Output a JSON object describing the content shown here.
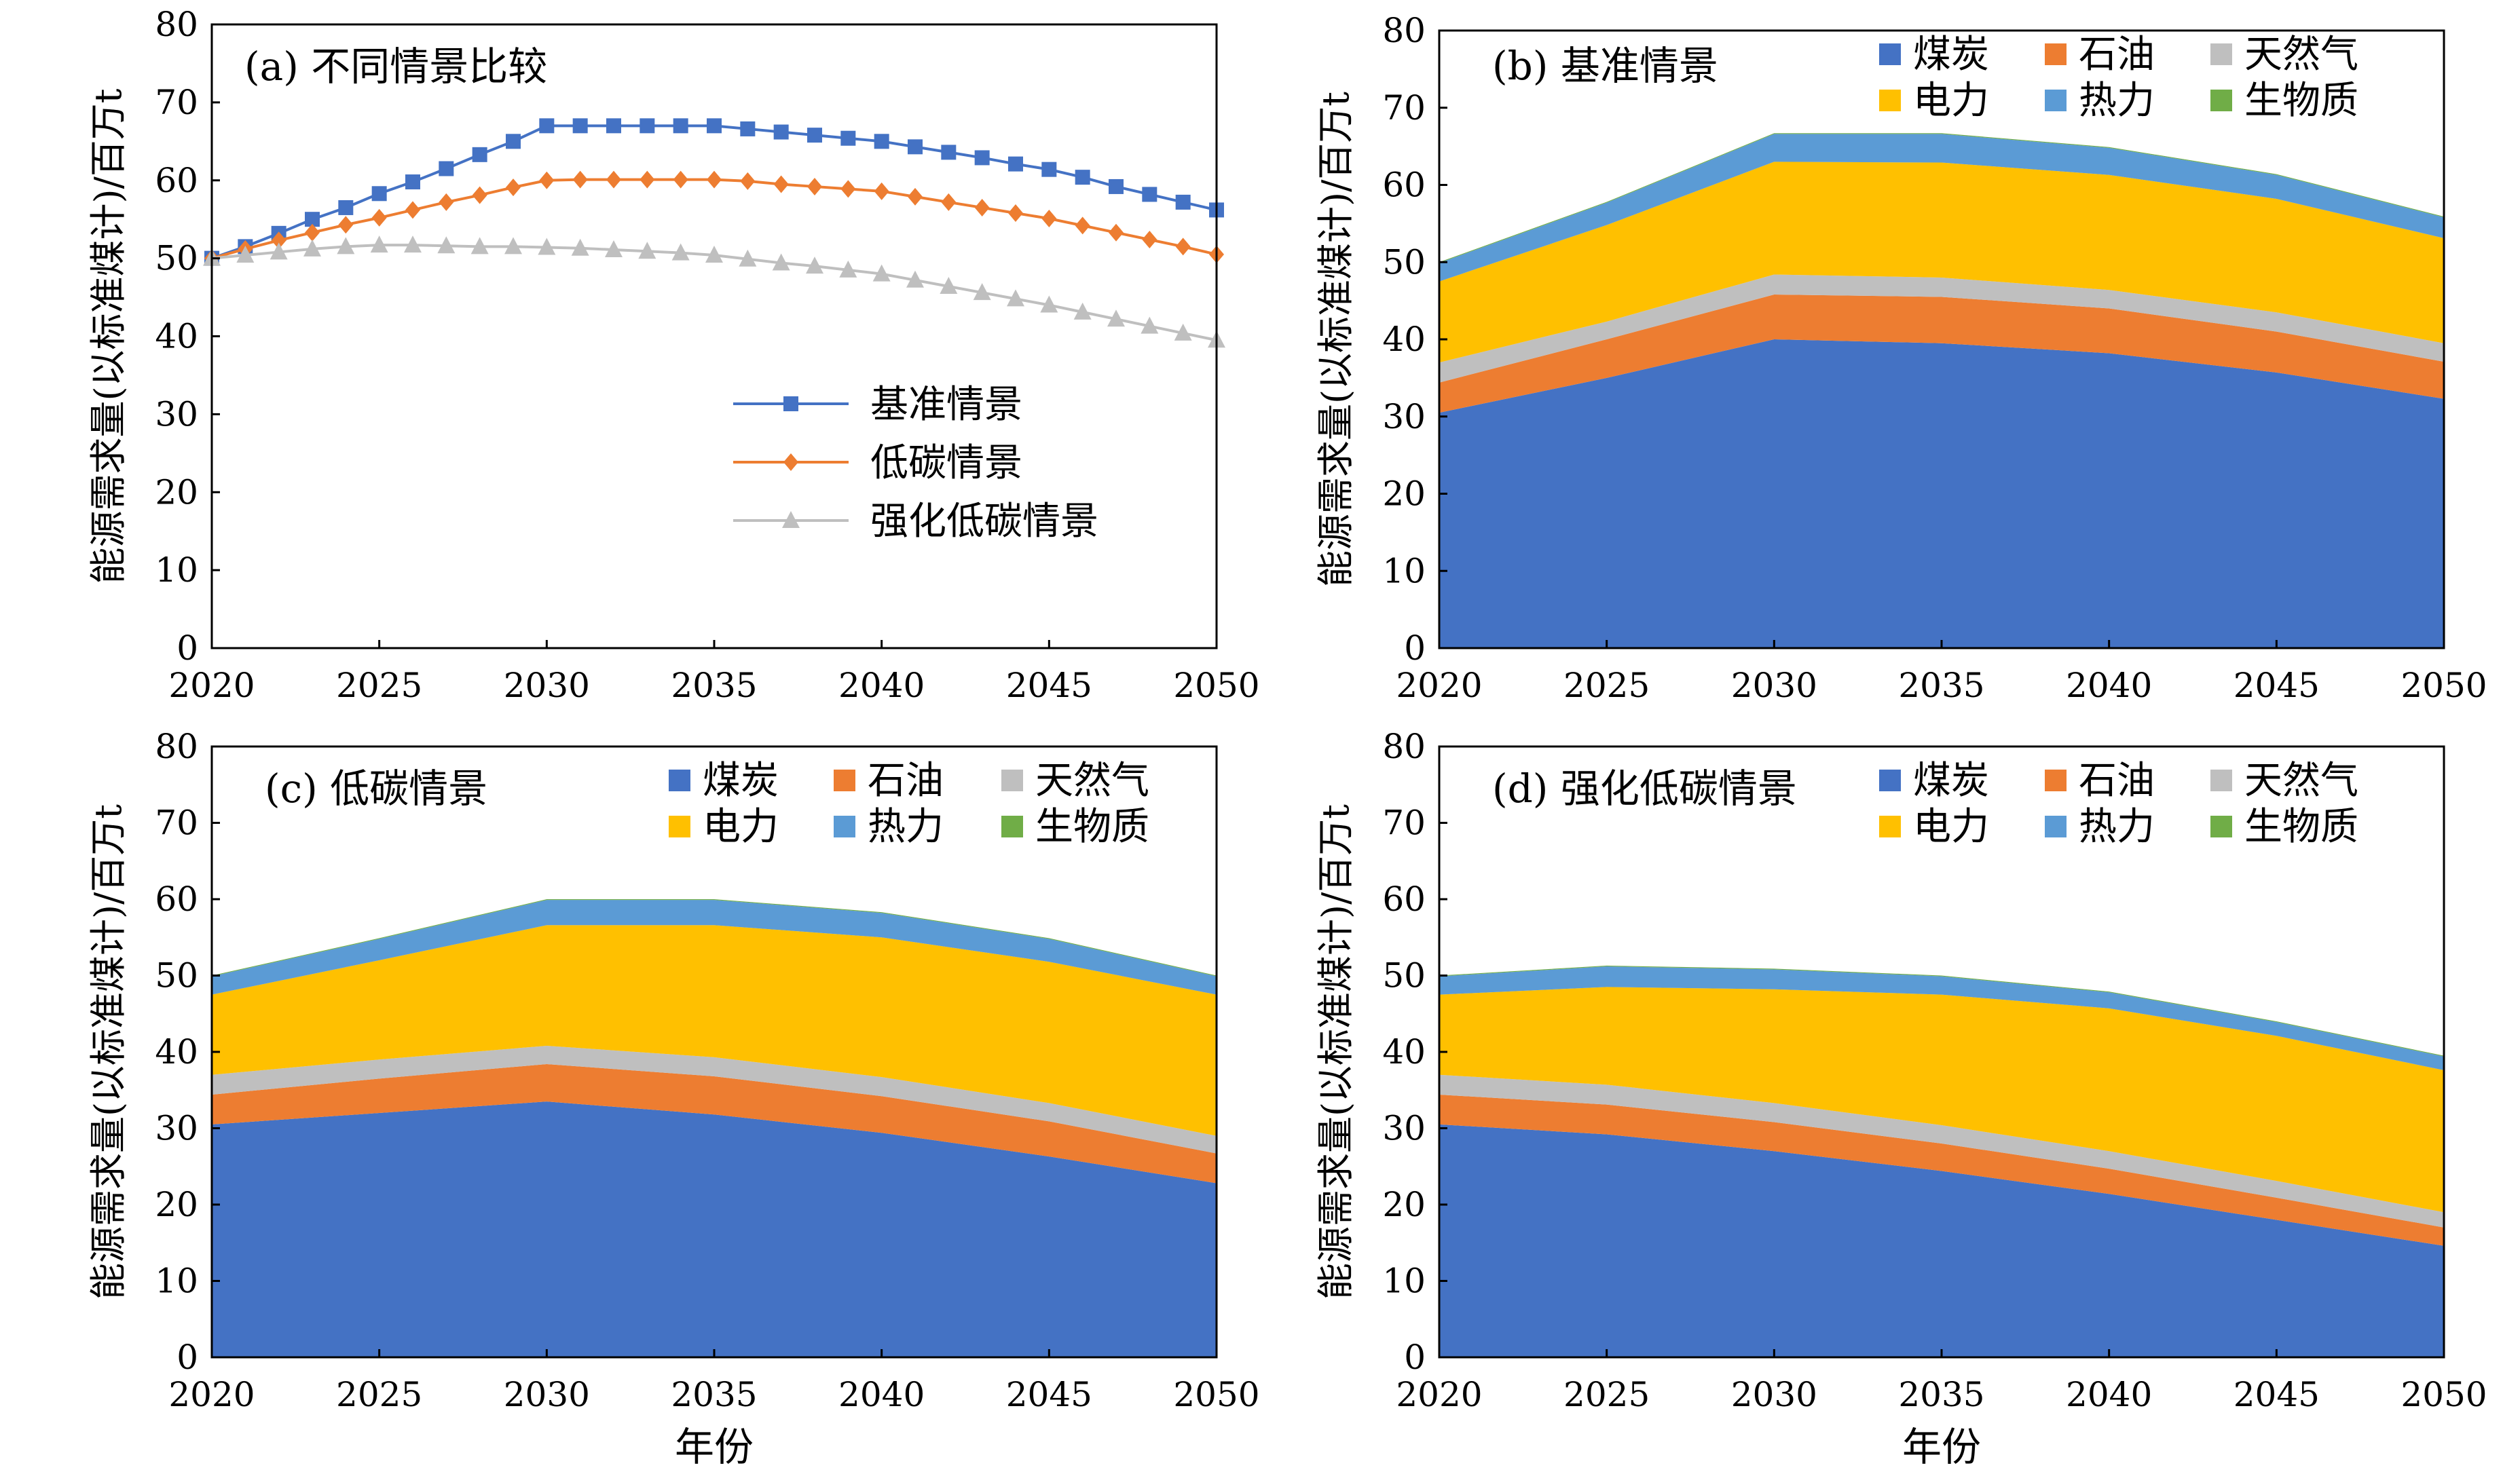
{
  "colors": {
    "coal": "#4472c4",
    "oil": "#ed7d31",
    "gas": "#bfbfbf",
    "electricity": "#ffc000",
    "heat": "#5b9bd5",
    "biomass": "#70ad47",
    "baseline_line": "#4472c4",
    "lowcarbon_line": "#ed7d31",
    "enhanced_line": "#bfbfbf"
  },
  "chart_data": [
    {
      "id": "a",
      "type": "line",
      "title": "(a) 不同情景比较",
      "xlabel": "",
      "ylabel": "能源需求量(以标准煤计)/百万t",
      "xlim": [
        2020,
        2050
      ],
      "ylim": [
        0,
        80
      ],
      "x_ticks": [
        2020,
        2025,
        2030,
        2035,
        2040,
        2045,
        2050
      ],
      "y_ticks": [
        0,
        10,
        20,
        30,
        40,
        50,
        60,
        70,
        80
      ],
      "grid": false,
      "legend_position": "center-right",
      "x": [
        2020,
        2021,
        2022,
        2023,
        2024,
        2025,
        2026,
        2027,
        2028,
        2029,
        2030,
        2031,
        2032,
        2033,
        2034,
        2035,
        2036,
        2037,
        2038,
        2039,
        2040,
        2041,
        2042,
        2043,
        2044,
        2045,
        2046,
        2047,
        2048,
        2049,
        2050
      ],
      "series": [
        {
          "name": "基准情景",
          "marker": "square",
          "values": [
            50,
            51.5,
            53.2,
            55,
            56.5,
            58.3,
            59.8,
            61.5,
            63.3,
            65,
            67,
            67,
            67,
            67,
            67,
            67,
            66.6,
            66.2,
            65.8,
            65.4,
            65,
            64.3,
            63.6,
            62.9,
            62.1,
            61.4,
            60.4,
            59.2,
            58.2,
            57.2,
            56.2
          ]
        },
        {
          "name": "低碳情景",
          "marker": "diamond",
          "values": [
            50,
            51.2,
            52.3,
            53.3,
            54.3,
            55.2,
            56.2,
            57.2,
            58.1,
            59.1,
            60,
            60.1,
            60.1,
            60.1,
            60.1,
            60.1,
            59.9,
            59.5,
            59.2,
            58.9,
            58.6,
            57.9,
            57.2,
            56.5,
            55.8,
            55.1,
            54.2,
            53.3,
            52.4,
            51.5,
            50.5
          ]
        },
        {
          "name": "强化低碳情景",
          "marker": "triangle",
          "values": [
            50,
            50.4,
            50.8,
            51.2,
            51.5,
            51.7,
            51.7,
            51.6,
            51.5,
            51.5,
            51.4,
            51.3,
            51.1,
            50.9,
            50.7,
            50.4,
            49.9,
            49.4,
            49,
            48.5,
            48,
            47.2,
            46.4,
            45.6,
            44.8,
            44,
            43.1,
            42.2,
            41.3,
            40.4,
            39.5
          ]
        }
      ]
    },
    {
      "id": "b",
      "type": "area",
      "stacked": true,
      "title": "(b) 基准情景",
      "xlabel": "",
      "ylabel": "能源需求量(以标准煤计)/百万t",
      "xlim": [
        2020,
        2050
      ],
      "ylim": [
        0,
        80
      ],
      "x_ticks": [
        2020,
        2025,
        2030,
        2035,
        2040,
        2045,
        2050
      ],
      "y_ticks": [
        0,
        10,
        20,
        30,
        40,
        50,
        60,
        70,
        80
      ],
      "grid": false,
      "legend_position": "top-right",
      "x": [
        2020,
        2025,
        2030,
        2035,
        2040,
        2045,
        2050
      ],
      "series": [
        {
          "name": "煤炭",
          "color_key": "coal",
          "values": [
            30.5,
            35.0,
            40.0,
            39.5,
            38.2,
            35.7,
            32.3
          ]
        },
        {
          "name": "石油",
          "color_key": "oil",
          "values": [
            3.9,
            5.0,
            5.8,
            6.0,
            5.8,
            5.3,
            4.8
          ]
        },
        {
          "name": "天然气",
          "color_key": "gas",
          "values": [
            2.6,
            2.3,
            2.6,
            2.5,
            2.4,
            2.5,
            2.4
          ]
        },
        {
          "name": "电力",
          "color_key": "electricity",
          "values": [
            10.5,
            12.5,
            14.6,
            14.9,
            14.9,
            14.7,
            13.6
          ]
        },
        {
          "name": "热力",
          "color_key": "heat",
          "values": [
            2.4,
            2.9,
            3.6,
            3.7,
            3.5,
            3.1,
            2.7
          ]
        },
        {
          "name": "生物质",
          "color_key": "biomass",
          "values": [
            0.1,
            0.1,
            0.1,
            0.1,
            0.1,
            0.1,
            0.1
          ]
        }
      ]
    },
    {
      "id": "c",
      "type": "area",
      "stacked": true,
      "title": "(c) 低碳情景",
      "xlabel": "年份",
      "ylabel": "能源需求量(以标准煤计)/百万t",
      "xlim": [
        2020,
        2050
      ],
      "ylim": [
        0,
        80
      ],
      "x_ticks": [
        2020,
        2025,
        2030,
        2035,
        2040,
        2045,
        2050
      ],
      "y_ticks": [
        0,
        10,
        20,
        30,
        40,
        50,
        60,
        70,
        80
      ],
      "grid": false,
      "legend_position": "top-right",
      "x": [
        2020,
        2025,
        2030,
        2035,
        2040,
        2045,
        2050
      ],
      "series": [
        {
          "name": "煤炭",
          "color_key": "coal",
          "values": [
            30.5,
            32.0,
            33.5,
            31.8,
            29.4,
            26.3,
            22.8
          ]
        },
        {
          "name": "石油",
          "color_key": "oil",
          "values": [
            3.9,
            4.5,
            4.9,
            5.0,
            4.8,
            4.6,
            3.9
          ]
        },
        {
          "name": "天然气",
          "color_key": "gas",
          "values": [
            2.6,
            2.5,
            2.4,
            2.5,
            2.5,
            2.4,
            2.3
          ]
        },
        {
          "name": "电力",
          "color_key": "electricity",
          "values": [
            10.5,
            13.0,
            15.8,
            17.3,
            18.3,
            18.5,
            18.5
          ]
        },
        {
          "name": "热力",
          "color_key": "heat",
          "values": [
            2.4,
            2.8,
            3.3,
            3.3,
            3.2,
            3.0,
            2.4
          ]
        },
        {
          "name": "生物质",
          "color_key": "biomass",
          "values": [
            0.1,
            0.1,
            0.1,
            0.1,
            0.1,
            0.1,
            0.1
          ]
        }
      ]
    },
    {
      "id": "d",
      "type": "area",
      "stacked": true,
      "title": "(d) 强化低碳情景",
      "xlabel": "年份",
      "ylabel": "能源需求量(以标准煤计)/百万t",
      "xlim": [
        2020,
        2050
      ],
      "ylim": [
        0,
        80
      ],
      "x_ticks": [
        2020,
        2025,
        2030,
        2035,
        2040,
        2045,
        2050
      ],
      "y_ticks": [
        0,
        10,
        20,
        30,
        40,
        50,
        60,
        70,
        80
      ],
      "grid": false,
      "legend_position": "top-right",
      "x": [
        2020,
        2025,
        2030,
        2035,
        2040,
        2045,
        2050
      ],
      "series": [
        {
          "name": "煤炭",
          "color_key": "coal",
          "values": [
            30.5,
            29.2,
            27.0,
            24.4,
            21.4,
            18.0,
            14.6
          ]
        },
        {
          "name": "石油",
          "color_key": "oil",
          "values": [
            3.9,
            3.9,
            3.8,
            3.6,
            3.3,
            2.9,
            2.4
          ]
        },
        {
          "name": "天然气",
          "color_key": "gas",
          "values": [
            2.6,
            2.6,
            2.5,
            2.4,
            2.3,
            2.2,
            2.0
          ]
        },
        {
          "name": "电力",
          "color_key": "electricity",
          "values": [
            10.5,
            12.8,
            14.9,
            17.1,
            18.7,
            19.0,
            18.6
          ]
        },
        {
          "name": "热力",
          "color_key": "heat",
          "values": [
            2.4,
            2.7,
            2.6,
            2.4,
            2.1,
            1.8,
            1.8
          ]
        },
        {
          "name": "生物质",
          "color_key": "biomass",
          "values": [
            0.1,
            0.1,
            0.1,
            0.1,
            0.1,
            0.1,
            0.1
          ]
        }
      ]
    }
  ]
}
